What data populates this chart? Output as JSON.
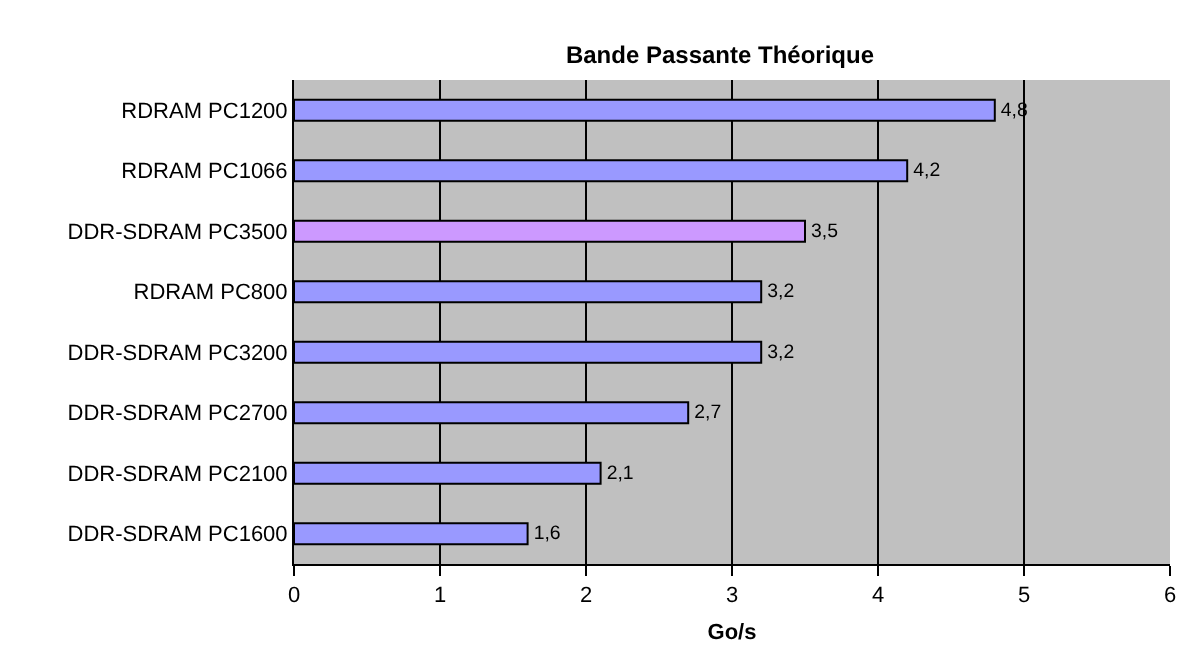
{
  "chart_data": {
    "type": "bar",
    "orientation": "horizontal",
    "title": "Bande Passante Théorique",
    "xlabel": "Go/s",
    "categories": [
      "RDRAM PC1200",
      "RDRAM PC1066",
      "DDR-SDRAM PC3500",
      "RDRAM PC800",
      "DDR-SDRAM PC3200",
      "DDR-SDRAM PC2700",
      "DDR-SDRAM PC2100",
      "DDR-SDRAM PC1600"
    ],
    "values": [
      4.8,
      4.2,
      3.5,
      3.2,
      3.2,
      2.7,
      2.1,
      1.6
    ],
    "value_labels": [
      "4,8",
      "4,2",
      "3,5",
      "3,2",
      "3,2",
      "2,7",
      "2,1",
      "1,6"
    ],
    "colors": [
      "#9999ff",
      "#9999ff",
      "#cc99ff",
      "#9999ff",
      "#9999ff",
      "#9999ff",
      "#9999ff",
      "#9999ff"
    ],
    "xlim": [
      0,
      6
    ],
    "xticks": [
      0,
      1,
      2,
      3,
      4,
      5,
      6
    ],
    "grid": "x"
  }
}
